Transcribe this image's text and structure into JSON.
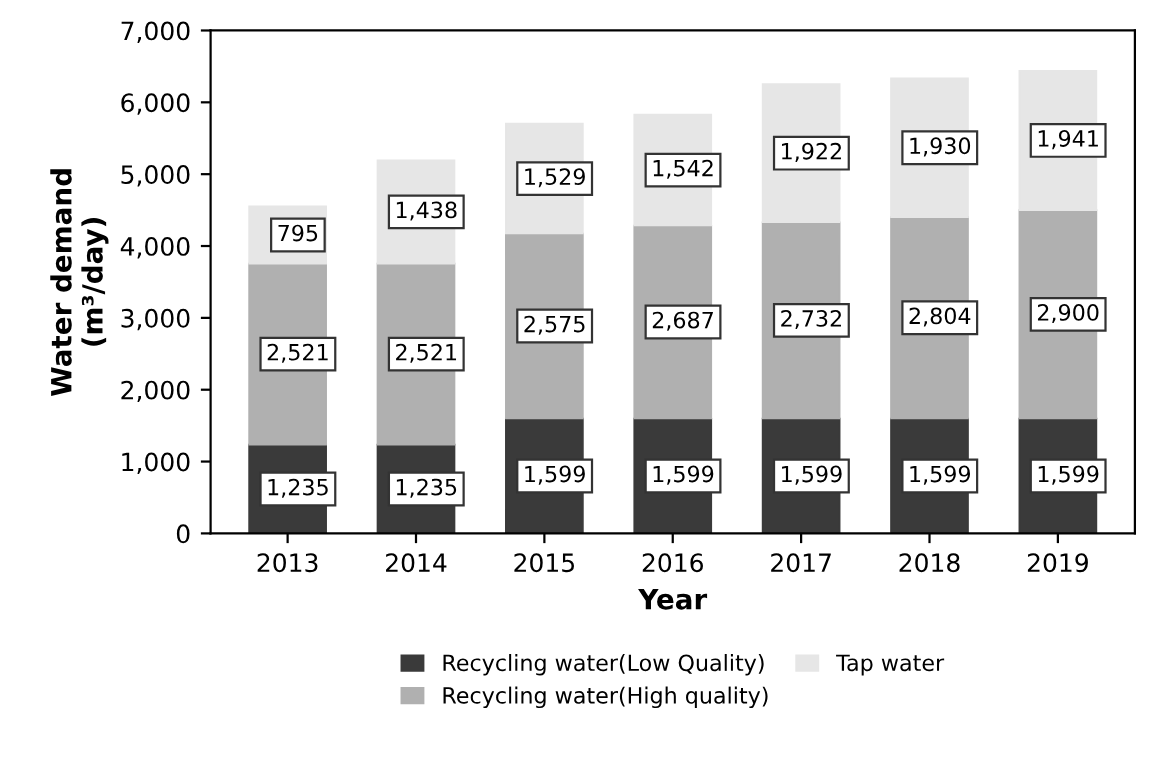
{
  "chart_data": {
    "type": "bar",
    "stacked": true,
    "xlabel": "Year",
    "ylabel": "Water demand\n(m³/day)",
    "categories": [
      "2013",
      "2014",
      "2015",
      "2016",
      "2017",
      "2018",
      "2019"
    ],
    "series": [
      {
        "name": "Recycling water(Low Quality)",
        "color": "#3a3a3a",
        "values": [
          1235,
          1235,
          1599,
          1599,
          1599,
          1599,
          1599
        ],
        "value_labels": [
          "1,235",
          "1,235",
          "1,599",
          "1,599",
          "1,599",
          "1,599",
          "1,599"
        ]
      },
      {
        "name": "Recycling water(High quality)",
        "color": "#b0b0b0",
        "values": [
          2521,
          2521,
          2575,
          2687,
          2732,
          2804,
          2900
        ],
        "value_labels": [
          "2,521",
          "2,521",
          "2,575",
          "2,687",
          "2,732",
          "2,804",
          "2,900"
        ]
      },
      {
        "name": "Tap water",
        "color": "#e6e6e6",
        "values": [
          795,
          1438,
          1529,
          1542,
          1922,
          1930,
          1941
        ],
        "value_labels": [
          "795",
          "1,438",
          "1,529",
          "1,542",
          "1,922",
          "1,930",
          "1,941"
        ]
      }
    ],
    "ylim": [
      0,
      7000
    ],
    "yticks": [
      0,
      {
        "value": 1000,
        "label": "1,000"
      },
      {
        "value": 2000,
        "label": "2,000"
      },
      {
        "value": 3000,
        "label": "3,000"
      },
      {
        "value": 4000,
        "label": "4,000"
      },
      {
        "value": 5000,
        "label": "5,000"
      },
      {
        "value": 6000,
        "label": "6,000"
      },
      {
        "value": 7000,
        "label": "7,000"
      }
    ],
    "legend": "bottom",
    "grid": false
  }
}
